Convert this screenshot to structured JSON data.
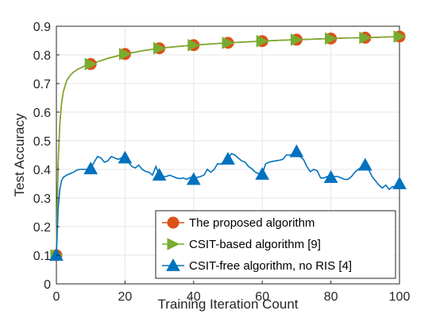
{
  "chart_data": {
    "type": "line",
    "xlabel": "Training Iteration Count",
    "ylabel": "Test Accuracy",
    "xlim": [
      0,
      100
    ],
    "ylim": [
      0,
      0.9
    ],
    "xticks": [
      0,
      20,
      40,
      60,
      80,
      100
    ],
    "yticks": [
      0,
      0.1,
      0.2,
      0.3,
      0.4,
      0.5,
      0.6,
      0.7,
      0.8,
      0.9
    ],
    "ytick_labels": [
      "0",
      "0.1",
      "0.2",
      "0.3",
      "0.4",
      "0.5",
      "0.6",
      "0.7",
      "0.8",
      "0.9"
    ],
    "grid": true,
    "legend_position": "bottom-right",
    "series": [
      {
        "name": "The proposed algorithm",
        "color": "#D95319",
        "marker": "circle",
        "x": [
          0,
          0.5,
          1,
          1.5,
          2,
          3,
          4,
          5,
          6,
          8,
          10,
          15,
          20,
          25,
          30,
          35,
          40,
          45,
          50,
          55,
          60,
          65,
          70,
          75,
          80,
          85,
          90,
          95,
          100
        ],
        "y": [
          0.1,
          0.42,
          0.56,
          0.63,
          0.67,
          0.71,
          0.728,
          0.74,
          0.748,
          0.76,
          0.768,
          0.788,
          0.803,
          0.814,
          0.823,
          0.829,
          0.834,
          0.838,
          0.842,
          0.845,
          0.848,
          0.851,
          0.853,
          0.855,
          0.857,
          0.859,
          0.86,
          0.862,
          0.864
        ],
        "marker_x": [
          0,
          10,
          20,
          30,
          40,
          50,
          60,
          70,
          80,
          90,
          100
        ]
      },
      {
        "name": "CSIT-based algorithm [9]",
        "color": "#77AC30",
        "marker": "triangle-right",
        "x": [
          0,
          0.5,
          1,
          1.5,
          2,
          3,
          4,
          5,
          6,
          8,
          10,
          15,
          20,
          25,
          30,
          35,
          40,
          45,
          50,
          55,
          60,
          65,
          70,
          75,
          80,
          85,
          90,
          95,
          100
        ],
        "y": [
          0.1,
          0.42,
          0.56,
          0.63,
          0.67,
          0.71,
          0.728,
          0.74,
          0.748,
          0.76,
          0.768,
          0.788,
          0.803,
          0.814,
          0.823,
          0.829,
          0.834,
          0.838,
          0.842,
          0.845,
          0.848,
          0.851,
          0.853,
          0.855,
          0.857,
          0.859,
          0.86,
          0.862,
          0.864
        ],
        "marker_x": [
          0,
          10,
          20,
          30,
          40,
          50,
          60,
          70,
          80,
          90,
          100
        ]
      },
      {
        "name": "CSIT-free algorithm, no RIS [4]",
        "color": "#0072BD",
        "marker": "triangle-up",
        "x": [
          0,
          0.5,
          1,
          1.5,
          2,
          3,
          4,
          5,
          6,
          7,
          8,
          9,
          10,
          11,
          12,
          13,
          14,
          15,
          16,
          17,
          18,
          19,
          20,
          21,
          22,
          23,
          24,
          25,
          26,
          27,
          28,
          29,
          30,
          31,
          32,
          33,
          34,
          35,
          36,
          37,
          38,
          39,
          40,
          41,
          42,
          43,
          44,
          45,
          46,
          47,
          48,
          49,
          50,
          51,
          52,
          53,
          54,
          55,
          56,
          57,
          58,
          59,
          60,
          61,
          62,
          63,
          64,
          65,
          66,
          67,
          68,
          69,
          70,
          71,
          72,
          73,
          74,
          75,
          76,
          77,
          78,
          79,
          80,
          81,
          82,
          83,
          84,
          85,
          86,
          87,
          88,
          89,
          90,
          91,
          92,
          93,
          94,
          95,
          96,
          97,
          98,
          99,
          100
        ],
        "y": [
          0.1,
          0.26,
          0.33,
          0.36,
          0.372,
          0.38,
          0.385,
          0.39,
          0.398,
          0.4,
          0.4,
          0.4,
          0.402,
          0.425,
          0.445,
          0.44,
          0.425,
          0.43,
          0.445,
          0.44,
          0.435,
          0.44,
          0.44,
          0.425,
          0.41,
          0.405,
          0.415,
          0.4,
          0.393,
          0.39,
          0.38,
          0.41,
          0.38,
          0.375,
          0.375,
          0.38,
          0.375,
          0.37,
          0.368,
          0.37,
          0.365,
          0.372,
          0.365,
          0.372,
          0.375,
          0.38,
          0.4,
          0.39,
          0.4,
          0.42,
          0.418,
          0.432,
          0.436,
          0.455,
          0.45,
          0.44,
          0.43,
          0.425,
          0.41,
          0.402,
          0.39,
          0.385,
          0.383,
          0.42,
          0.425,
          0.428,
          0.43,
          0.432,
          0.435,
          0.45,
          0.45,
          0.452,
          0.462,
          0.445,
          0.435,
          0.41,
          0.392,
          0.4,
          0.395,
          0.37,
          0.37,
          0.375,
          0.372,
          0.375,
          0.375,
          0.37,
          0.365,
          0.365,
          0.375,
          0.39,
          0.4,
          0.41,
          0.415,
          0.4,
          0.375,
          0.36,
          0.345,
          0.335,
          0.345,
          0.33,
          0.34,
          0.335,
          0.35
        ],
        "marker_x": [
          0,
          10,
          20,
          30,
          40,
          50,
          60,
          70,
          80,
          90,
          100
        ]
      }
    ]
  }
}
